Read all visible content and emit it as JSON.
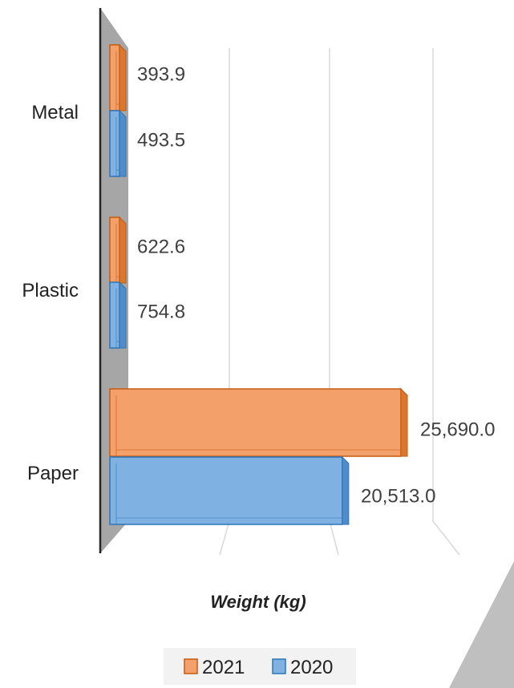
{
  "chart_data": {
    "type": "bar",
    "orientation": "horizontal",
    "style": "3d-clustered",
    "categories": [
      "Metal",
      "Plastic",
      "Paper"
    ],
    "series": [
      {
        "name": "2021",
        "values": [
          393.9,
          622.6,
          25690.0
        ],
        "color": "#ED7D31"
      },
      {
        "name": "2020",
        "values": [
          493.5,
          754.8,
          20513.0
        ],
        "color": "#5B9BD5"
      }
    ],
    "data_labels": {
      "2021": [
        "393.9",
        "622.6",
        "25,690.0"
      ],
      "2020": [
        "493.5",
        "754.8",
        "20,513.0"
      ]
    },
    "xlabel": "Weight (kg)",
    "ylabel": "",
    "xlim": [
      0,
      30000
    ],
    "gridlines": true,
    "legend_position": "bottom"
  },
  "colors": {
    "wall": "#A6A6A6",
    "axis_line": "#262626",
    "gridline": "#D9D9D9",
    "decor_triangle": "#BFBFBF"
  }
}
